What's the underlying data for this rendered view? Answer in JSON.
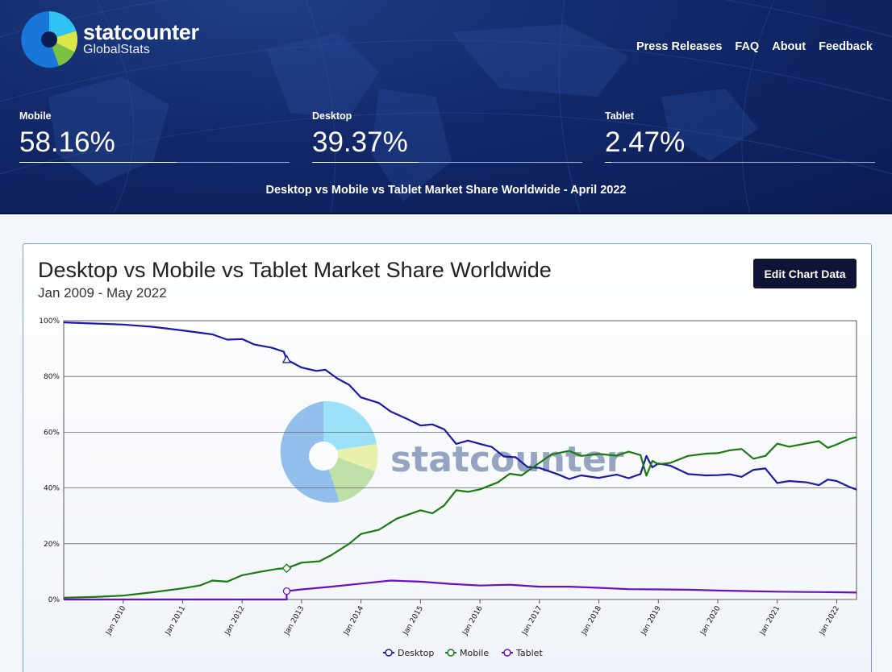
{
  "brand": {
    "name": "statcounter",
    "sub": "GlobalStats"
  },
  "nav": [
    "Press Releases",
    "FAQ",
    "About",
    "Feedback"
  ],
  "stats": [
    {
      "label": "Mobile",
      "value": "58.16%"
    },
    {
      "label": "Desktop",
      "value": "39.37%"
    },
    {
      "label": "Tablet",
      "value": "2.47%"
    }
  ],
  "subtitle": "Desktop vs Mobile vs Tablet Market Share Worldwide - April 2022",
  "edit_button": "Edit Chart Data",
  "watermark": "statcounter",
  "colors": {
    "desktop": "#1a1aa6",
    "mobile": "#1c7a10",
    "tablet": "#6a0fc4",
    "header": "#12296a"
  },
  "chart_data": {
    "type": "line",
    "title": "Desktop vs Mobile vs Tablet Market Share Worldwide",
    "subtitle": "Jan 2009 - May 2022",
    "ylim": [
      0,
      100
    ],
    "yticks": [
      0,
      20,
      40,
      60,
      80,
      100
    ],
    "ytick_labels": [
      "0%",
      "20%",
      "40%",
      "60%",
      "80%",
      "100%"
    ],
    "xlim": [
      2009.0,
      2022.333
    ],
    "xticks": [
      2010,
      2011,
      2012,
      2013,
      2014,
      2015,
      2016,
      2017,
      2018,
      2019,
      2020,
      2021,
      2022
    ],
    "xtick_labels": [
      "Jan 2010",
      "Jan 2011",
      "Jan 2012",
      "Jan 2013",
      "Jan 2014",
      "Jan 2015",
      "Jan 2016",
      "Jan 2017",
      "Jan 2018",
      "Jan 2019",
      "Jan 2020",
      "Jan 2021",
      "Jan 2022"
    ],
    "legend": [
      "Desktop",
      "Mobile",
      "Tablet"
    ],
    "legend_position": "bottom-center",
    "series": [
      {
        "name": "Desktop",
        "points": [
          [
            2009.0,
            99.4
          ],
          [
            2009.5,
            99.0
          ],
          [
            2010.0,
            98.6
          ],
          [
            2010.5,
            97.8
          ],
          [
            2011.0,
            96.5
          ],
          [
            2011.5,
            95.1
          ],
          [
            2011.75,
            93.2
          ],
          [
            2012.0,
            93.4
          ],
          [
            2012.2,
            91.5
          ],
          [
            2012.5,
            90.3
          ],
          [
            2012.7,
            88.9
          ],
          [
            2012.75,
            86.0
          ],
          [
            2013.0,
            83.2
          ],
          [
            2013.25,
            82.0
          ],
          [
            2013.4,
            82.4
          ],
          [
            2013.6,
            79.3
          ],
          [
            2013.8,
            77.0
          ],
          [
            2014.0,
            72.5
          ],
          [
            2014.3,
            70.5
          ],
          [
            2014.5,
            67.4
          ],
          [
            2014.8,
            64.5
          ],
          [
            2015.0,
            62.4
          ],
          [
            2015.2,
            62.8
          ],
          [
            2015.4,
            61.0
          ],
          [
            2015.6,
            55.8
          ],
          [
            2015.8,
            57.0
          ],
          [
            2016.0,
            55.8
          ],
          [
            2016.2,
            54.7
          ],
          [
            2016.4,
            51.3
          ],
          [
            2016.6,
            51.0
          ],
          [
            2016.8,
            47.5
          ],
          [
            2017.0,
            47.2
          ],
          [
            2017.3,
            45.0
          ],
          [
            2017.5,
            43.2
          ],
          [
            2017.7,
            44.5
          ],
          [
            2018.0,
            43.6
          ],
          [
            2018.3,
            44.8
          ],
          [
            2018.5,
            43.5
          ],
          [
            2018.7,
            45.0
          ],
          [
            2018.8,
            51.5
          ],
          [
            2018.9,
            47.4
          ],
          [
            2019.0,
            48.8
          ],
          [
            2019.2,
            48.0
          ],
          [
            2019.5,
            45.0
          ],
          [
            2019.8,
            44.5
          ],
          [
            2020.0,
            44.6
          ],
          [
            2020.2,
            44.9
          ],
          [
            2020.4,
            44.0
          ],
          [
            2020.6,
            46.5
          ],
          [
            2020.8,
            47.0
          ],
          [
            2021.0,
            41.8
          ],
          [
            2021.2,
            42.5
          ],
          [
            2021.5,
            42.0
          ],
          [
            2021.7,
            41.0
          ],
          [
            2021.85,
            43.0
          ],
          [
            2022.0,
            42.5
          ],
          [
            2022.2,
            40.5
          ],
          [
            2022.333,
            39.4
          ]
        ]
      },
      {
        "name": "Mobile",
        "points": [
          [
            2009.0,
            0.6
          ],
          [
            2009.5,
            0.9
          ],
          [
            2010.0,
            1.4
          ],
          [
            2010.5,
            2.6
          ],
          [
            2011.0,
            4.0
          ],
          [
            2011.3,
            5.1
          ],
          [
            2011.5,
            6.8
          ],
          [
            2011.75,
            6.4
          ],
          [
            2012.0,
            8.7
          ],
          [
            2012.3,
            9.9
          ],
          [
            2012.6,
            11.0
          ],
          [
            2012.75,
            11.2
          ],
          [
            2013.0,
            13.2
          ],
          [
            2013.3,
            13.7
          ],
          [
            2013.5,
            15.9
          ],
          [
            2013.8,
            20.0
          ],
          [
            2014.0,
            23.5
          ],
          [
            2014.3,
            25.0
          ],
          [
            2014.6,
            29.0
          ],
          [
            2015.0,
            32.0
          ],
          [
            2015.2,
            30.9
          ],
          [
            2015.4,
            33.8
          ],
          [
            2015.6,
            39.2
          ],
          [
            2015.8,
            38.6
          ],
          [
            2016.0,
            39.5
          ],
          [
            2016.3,
            42.0
          ],
          [
            2016.5,
            45.1
          ],
          [
            2016.7,
            44.5
          ],
          [
            2017.0,
            49.0
          ],
          [
            2017.2,
            52.0
          ],
          [
            2017.5,
            53.3
          ],
          [
            2017.7,
            51.5
          ],
          [
            2018.0,
            52.2
          ],
          [
            2018.3,
            51.6
          ],
          [
            2018.5,
            53.0
          ],
          [
            2018.7,
            51.8
          ],
          [
            2018.8,
            44.4
          ],
          [
            2018.9,
            49.7
          ],
          [
            2019.0,
            48.5
          ],
          [
            2019.2,
            49.0
          ],
          [
            2019.5,
            51.5
          ],
          [
            2019.8,
            52.3
          ],
          [
            2020.0,
            52.5
          ],
          [
            2020.2,
            53.5
          ],
          [
            2020.4,
            54.0
          ],
          [
            2020.6,
            50.5
          ],
          [
            2020.8,
            51.5
          ],
          [
            2021.0,
            55.9
          ],
          [
            2021.2,
            54.8
          ],
          [
            2021.5,
            56.0
          ],
          [
            2021.7,
            56.8
          ],
          [
            2021.85,
            54.4
          ],
          [
            2022.0,
            55.6
          ],
          [
            2022.2,
            57.5
          ],
          [
            2022.333,
            58.2
          ]
        ]
      },
      {
        "name": "Tablet",
        "points": [
          [
            2009.0,
            0.0
          ],
          [
            2012.75,
            0.0
          ],
          [
            2012.75,
            3.0
          ],
          [
            2013.0,
            3.6
          ],
          [
            2013.5,
            4.6
          ],
          [
            2014.0,
            5.7
          ],
          [
            2014.5,
            6.8
          ],
          [
            2015.0,
            6.4
          ],
          [
            2015.5,
            5.6
          ],
          [
            2016.0,
            5.0
          ],
          [
            2016.5,
            5.3
          ],
          [
            2017.0,
            4.6
          ],
          [
            2017.5,
            4.6
          ],
          [
            2018.0,
            4.2
          ],
          [
            2018.5,
            3.7
          ],
          [
            2019.0,
            3.6
          ],
          [
            2019.5,
            3.5
          ],
          [
            2020.0,
            3.2
          ],
          [
            2020.5,
            3.0
          ],
          [
            2021.0,
            2.8
          ],
          [
            2021.5,
            2.7
          ],
          [
            2022.0,
            2.6
          ],
          [
            2022.333,
            2.5
          ]
        ]
      }
    ],
    "markers": [
      {
        "series": "Desktop",
        "x": 2012.75,
        "y": 86.0,
        "shape": "triangle"
      },
      {
        "series": "Mobile",
        "x": 2012.75,
        "y": 11.2,
        "shape": "diamond"
      },
      {
        "series": "Tablet",
        "x": 2012.75,
        "y": 3.0,
        "shape": "circle"
      }
    ]
  }
}
